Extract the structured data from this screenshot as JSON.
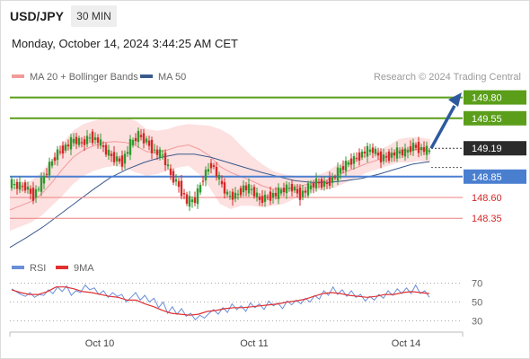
{
  "header": {
    "pair": "USD/JPY",
    "timeframe": "30 MIN"
  },
  "timestamp": "Monday, October 14, 2024 3:44:25 AM CET",
  "legend": {
    "ma20": {
      "label": "MA 20 + Bollinger Bands",
      "color": "#f29a9a"
    },
    "ma50": {
      "label": "MA 50",
      "color": "#3a5a8c"
    }
  },
  "credit": "Research © 2024 Trading Central",
  "rsi_legend": {
    "rsi": {
      "label": "RSI",
      "color": "#6a8fd8"
    },
    "ma9": {
      "label": "9MA",
      "color": "#e03030"
    }
  },
  "colors": {
    "resistance": "#5a9e1a",
    "pivot": "#4a7fd0",
    "support": "#ef7f7f",
    "up_candle": "#2e9a2e",
    "down_candle": "#d62828",
    "bands_fill": "#fde0e0",
    "arrow": "#2d5a9e",
    "price_tag": "#2b2b2b"
  },
  "chart_data": [
    {
      "type": "candlestick",
      "title": "",
      "x_ticks": [
        "Oct 10",
        "Oct 11",
        "Oct 14"
      ],
      "ylim": [
        147.9,
        150.0
      ],
      "levels": [
        {
          "value": 149.8,
          "label": "149.80",
          "kind": "resistance"
        },
        {
          "value": 149.55,
          "label": "149.55",
          "kind": "resistance"
        },
        {
          "value": 149.19,
          "label": "149.19",
          "kind": "current"
        },
        {
          "value": 148.85,
          "label": "148.85",
          "kind": "pivot"
        },
        {
          "value": 148.6,
          "label": "148.60",
          "kind": "support"
        },
        {
          "value": 148.35,
          "label": "148.35",
          "kind": "support"
        }
      ],
      "price_path": [
        148.77,
        148.74,
        148.73,
        148.62,
        148.78,
        148.98,
        149.14,
        149.21,
        149.29,
        149.25,
        149.33,
        149.28,
        149.15,
        149.07,
        149.03,
        149.24,
        149.35,
        149.27,
        149.15,
        149.1,
        148.87,
        148.74,
        148.55,
        148.57,
        148.84,
        149.01,
        148.81,
        148.62,
        148.62,
        148.72,
        148.69,
        148.57,
        148.61,
        148.64,
        148.7,
        148.72,
        148.63,
        148.71,
        148.78,
        148.76,
        148.82,
        148.94,
        149.02,
        149.08,
        149.15,
        149.17,
        149.07,
        149.1,
        149.14,
        149.14,
        149.22,
        149.18,
        149.15
      ],
      "bollinger": {
        "upper": [
          148.7,
          148.75,
          148.8,
          148.9,
          149.05,
          149.25,
          149.4,
          149.48,
          149.52,
          149.55,
          149.55,
          149.56,
          149.52,
          149.42,
          149.4,
          149.42,
          149.46,
          149.48,
          149.47,
          149.46,
          149.42,
          149.35,
          149.22,
          149.1,
          149.0,
          148.92,
          148.88,
          148.86,
          148.85,
          148.86,
          148.9,
          148.98,
          149.04,
          149.08,
          149.12,
          149.16,
          149.22,
          149.3,
          149.32,
          149.32,
          149.3
        ],
        "lower": [
          148.2,
          148.25,
          148.3,
          148.38,
          148.5,
          148.62,
          148.76,
          148.86,
          148.92,
          148.96,
          148.98,
          148.95,
          148.9,
          148.86,
          148.88,
          148.92,
          148.96,
          148.98,
          148.88,
          148.72,
          148.52,
          148.46,
          148.5,
          148.5,
          148.48,
          148.5,
          148.52,
          148.58,
          148.64,
          148.68,
          148.7,
          148.72,
          148.78,
          148.84,
          148.9,
          148.94,
          148.98,
          149.02,
          149.02,
          149.04,
          149.02
        ],
        "ma20": [
          148.45,
          148.5,
          148.55,
          148.64,
          148.78,
          148.94,
          149.08,
          149.17,
          149.22,
          149.26,
          149.27,
          149.26,
          149.22,
          149.15,
          149.14,
          149.17,
          149.21,
          149.23,
          149.18,
          149.1,
          148.97,
          148.9,
          148.85,
          148.8,
          148.74,
          148.7,
          148.7,
          148.72,
          148.75,
          148.77,
          148.8,
          148.85,
          148.91,
          148.96,
          149.01,
          149.05,
          149.1,
          149.16,
          149.17,
          149.18,
          149.16
        ]
      },
      "ma50": [
        148.0,
        148.12,
        148.25,
        148.4,
        148.55,
        148.7,
        148.84,
        148.94,
        149.02,
        149.08,
        149.12,
        149.12,
        149.08,
        149.02,
        148.96,
        148.9,
        148.85,
        148.8,
        148.78,
        148.78,
        148.8,
        148.83,
        148.88,
        148.94,
        149.0,
        149.03
      ]
    },
    {
      "type": "line",
      "title": "RSI",
      "ylim": [
        20,
        80
      ],
      "y_ticks": [
        "70",
        "50",
        "30"
      ],
      "series": [
        {
          "name": "RSI",
          "values": [
            64,
            61,
            58,
            56,
            60,
            55,
            58,
            57,
            63,
            59,
            66,
            61,
            67,
            57,
            62,
            60,
            68,
            63,
            65,
            58,
            62,
            55,
            60,
            56,
            58,
            50,
            55,
            60,
            52,
            57,
            50,
            54,
            44,
            50,
            38,
            45,
            37,
            43,
            35,
            38,
            31,
            36,
            33,
            38,
            42,
            37,
            44,
            39,
            48,
            42,
            46,
            40,
            49,
            44,
            48,
            42,
            51,
            46,
            49,
            43,
            51,
            47,
            52,
            48,
            54,
            50,
            57,
            53,
            62,
            57,
            66,
            58,
            63,
            56,
            62,
            55,
            58,
            51,
            56,
            52,
            58,
            54,
            62,
            57,
            64,
            59,
            65,
            59,
            68,
            59,
            62,
            55
          ]
        },
        {
          "name": "9MA",
          "values": [
            63,
            60,
            58,
            58,
            61,
            66,
            66,
            64,
            61,
            60,
            58,
            56,
            55,
            52,
            52,
            48,
            45,
            41,
            38,
            37,
            36,
            37,
            40,
            41,
            43,
            44,
            44,
            45,
            46,
            47,
            48,
            50,
            51,
            53,
            56,
            59,
            60,
            59,
            57,
            56,
            55,
            56,
            58,
            58,
            60,
            61,
            60,
            59
          ]
        }
      ]
    }
  ]
}
